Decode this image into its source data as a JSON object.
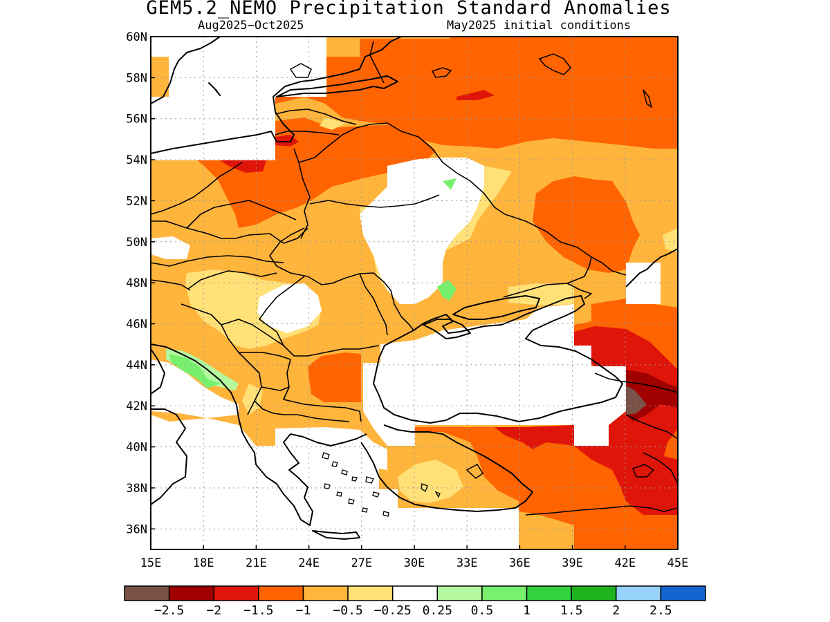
{
  "title": "GEM5.2_NEMO Precipitation Standard Anomalies",
  "subtitle_left": "Aug2025−Oct2025",
  "subtitle_right": "May2025 initial conditions",
  "map": {
    "lon_range": [
      15,
      45
    ],
    "lat_range": [
      35,
      60
    ],
    "lon_ticks": [
      "15E",
      "18E",
      "21E",
      "24E",
      "27E",
      "30E",
      "33E",
      "36E",
      "39E",
      "42E",
      "45E"
    ],
    "lat_ticks": [
      "36N",
      "38N",
      "40N",
      "42N",
      "44N",
      "46N",
      "48N",
      "50N",
      "52N",
      "54N",
      "56N",
      "58N",
      "60N"
    ],
    "grid": "dotted"
  },
  "colorbar": {
    "colors": [
      "#7a5248",
      "#a00000",
      "#e0150a",
      "#ff6400",
      "#ffb43c",
      "#ffe178",
      "#ffffff",
      "#b4f8a0",
      "#78f06e",
      "#32d23c",
      "#1eb41e",
      "#96d2fa",
      "#1464d2"
    ],
    "labels": [
      "−2.5",
      "−2",
      "−1.5",
      "−1",
      "−0.5",
      "−0.25",
      "0.25",
      "0.5",
      "1",
      "1.5",
      "2",
      "2.5"
    ]
  },
  "legend": {
    "levels": {
      "c2p5n": "#7a5248",
      "c2n": "#a00000",
      "c1p5n": "#e0150a",
      "c1n": "#ff6400",
      "c05n": "#ffb43c",
      "c025n": "#ffe178",
      "c0": "#ffffff",
      "c025": "#b4f8a0",
      "c05": "#78f06e"
    }
  }
}
